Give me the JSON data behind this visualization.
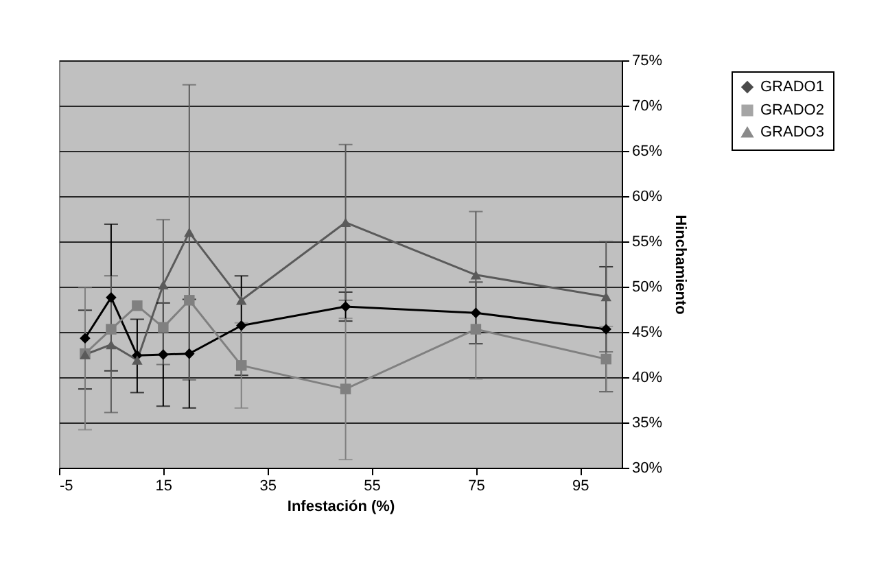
{
  "chart_data": {
    "type": "line",
    "xlabel": "Infestación (%)",
    "ylabel": "Hinchamiento",
    "x": [
      0,
      5,
      10,
      15,
      20,
      30,
      50,
      75,
      100
    ],
    "xlim": [
      -5,
      103
    ],
    "xticks": [
      -5,
      15,
      35,
      55,
      75,
      95
    ],
    "ylim": [
      30,
      75
    ],
    "yticks": [
      {
        "value": 30,
        "label": "30%"
      },
      {
        "value": 35,
        "label": "35%"
      },
      {
        "value": 40,
        "label": "40%"
      },
      {
        "value": 45,
        "label": "45%"
      },
      {
        "value": 50,
        "label": "50%"
      },
      {
        "value": 55,
        "label": "55%"
      },
      {
        "value": 60,
        "label": "60%"
      },
      {
        "value": 65,
        "label": "65%"
      },
      {
        "value": 70,
        "label": "70%"
      },
      {
        "value": 75,
        "label": "75%"
      }
    ],
    "grid": "y",
    "legend": "right",
    "series": [
      {
        "name": "GRADO1",
        "color": "#000000",
        "marker": "diamond",
        "values": [
          44.3,
          48.8,
          42.4,
          42.5,
          42.6,
          45.7,
          47.8,
          47.1,
          45.3
        ],
        "errors": [
          [
            38.7,
            47.4
          ],
          [
            40.7,
            56.9
          ],
          [
            38.3,
            46.4
          ],
          [
            36.8,
            48.2
          ],
          6,
          5.5,
          1.6,
          [
            43.7,
            50.5
          ],
          6.9
        ]
      },
      {
        "name": "GRADO2",
        "color": "#808080",
        "marker": "square",
        "values": [
          42.6,
          45.3,
          47.9,
          45.5,
          48.5,
          41.3,
          38.7,
          45.3,
          42.0
        ],
        "errors": [
          [
            34.2,
            49.9
          ],
          null,
          null,
          null,
          null,
          4.7,
          7.8,
          [
            39.8,
            50.5
          ],
          3.6
        ]
      },
      {
        "name": "GRADO3",
        "color": "#5a5a5a",
        "marker": "triangle",
        "values": [
          42.5,
          43.6,
          41.9,
          50.2,
          56.0,
          48.5,
          57.1,
          51.3,
          48.9
        ],
        "errors": [
          null,
          [
            36.1,
            51.2
          ],
          null,
          [
            41.4,
            57.4
          ],
          16.3,
          null,
          8.6,
          [
            43.7,
            58.3
          ],
          6.1
        ]
      }
    ]
  }
}
